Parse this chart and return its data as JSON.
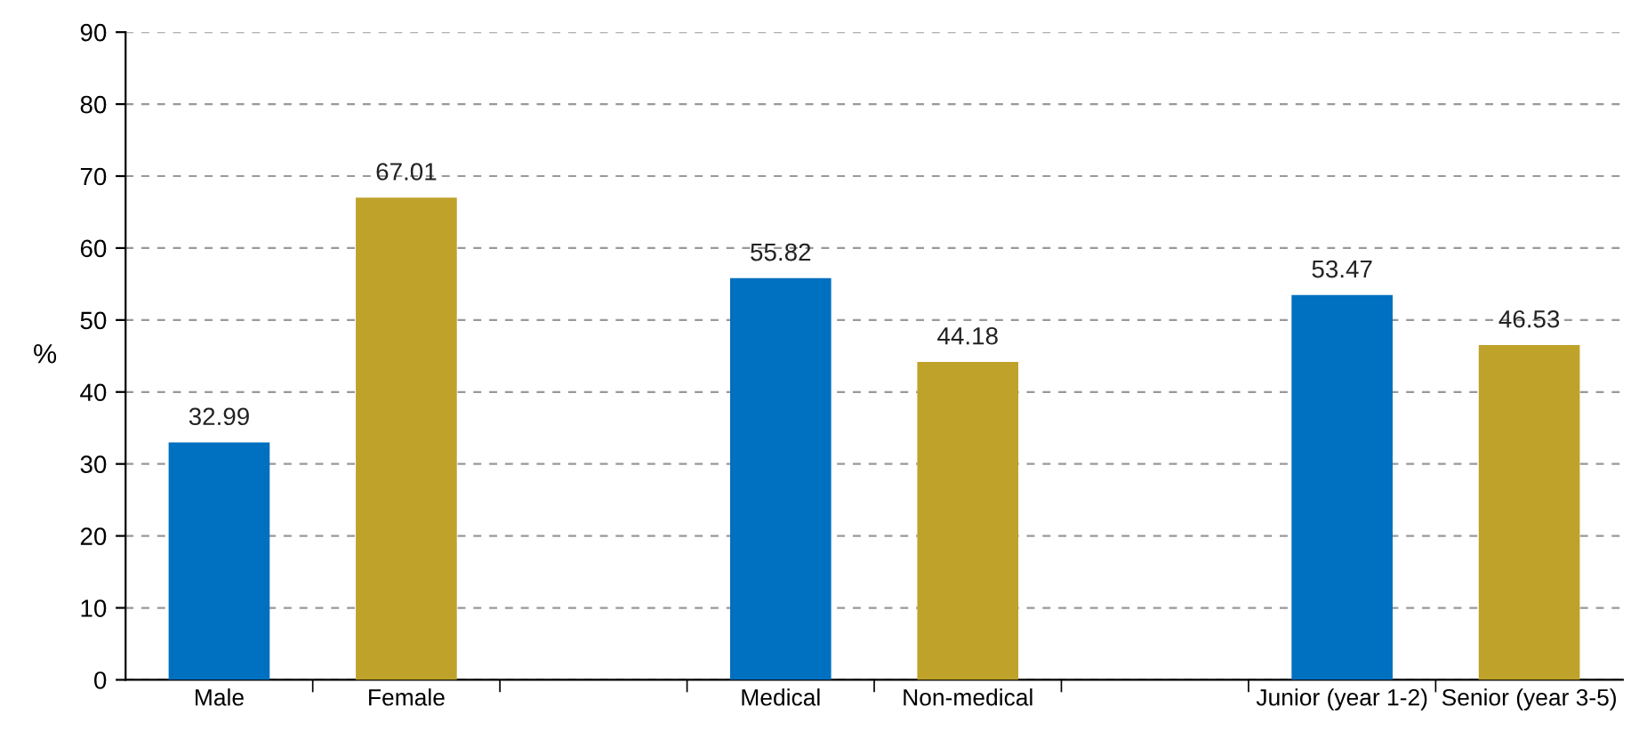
{
  "chart_data": {
    "type": "bar",
    "categories": [
      "Male",
      "Female",
      null,
      "Medical",
      "Non-medical",
      null,
      "Junior (year 1-2)",
      "Senior (year 3-5)"
    ],
    "values": [
      32.99,
      67.01,
      null,
      55.82,
      44.18,
      null,
      53.47,
      46.53
    ],
    "colors": [
      "#0070c0",
      "#bfa22a",
      null,
      "#0070c0",
      "#bfa22a",
      null,
      "#0070c0",
      "#bfa22a"
    ],
    "ylabel": "%",
    "ylim": [
      0,
      90
    ],
    "yticks": [
      0,
      10,
      20,
      30,
      40,
      50,
      60,
      70,
      80,
      90
    ],
    "grid": "y",
    "data_labels": true
  }
}
